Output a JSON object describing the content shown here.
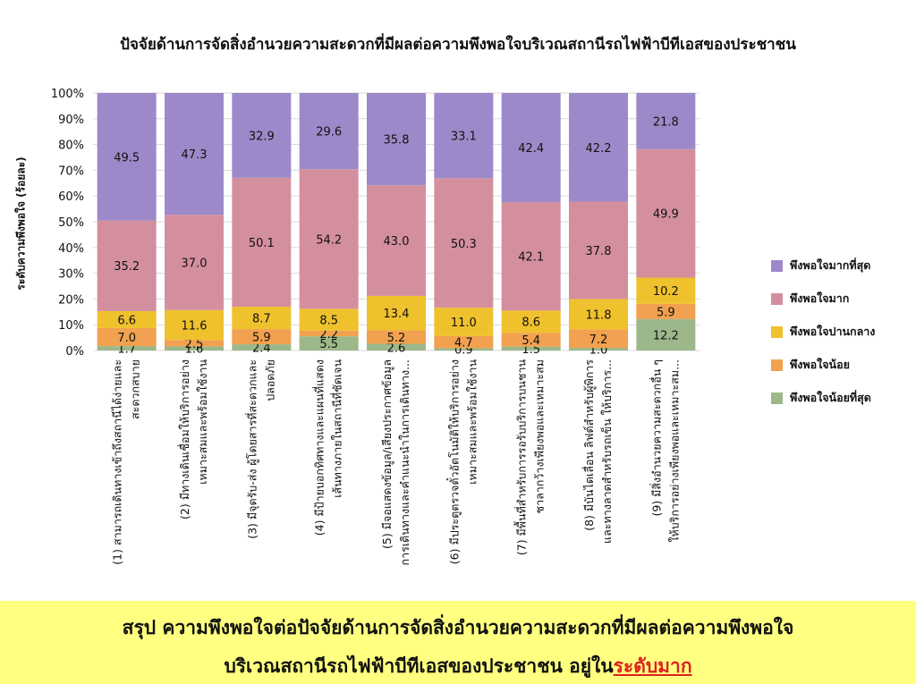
{
  "chart_data": {
    "type": "bar",
    "stacked": true,
    "title": "ปัจจัยด้านการจัดสิ่งอำนวยความสะดวกที่มีผลต่อความพึงพอใจบริเวณสถานีรถไฟฟ้าบีทีเอสของประชาชน",
    "ylabel": "ระดับความพึงพอใจ (ร้อยละ)",
    "xlabel": "",
    "ylim": [
      0,
      100
    ],
    "y_ticks": [
      "0%",
      "10%",
      "20%",
      "30%",
      "40%",
      "50%",
      "60%",
      "70%",
      "80%",
      "90%",
      "100%"
    ],
    "grid": true,
    "legend_position": "right",
    "categories": [
      [
        "(1) สามารถเดินทางเข้าถึงสถานีได้ง่ายและ",
        "สะดวกสบาย"
      ],
      [
        "(2) มีทางเดินเชื่อมให้บริการอย่าง",
        "เหมาะสมและพร้อมใช้งาน"
      ],
      [
        "(3) มีจุดรับ-ส่ง ผู้โดยสารที่สะดวกและ",
        "ปลอดภัย"
      ],
      [
        "(4) มีป้ายบอกทิศทางและแผนที่แสดง",
        "เส้นทางภายในสถานีที่ชัดเจน"
      ],
      [
        "(5) มีจอแสดงข้อมูล/เสียงประกาศข้อมูล",
        "การเดินทางและคำแนะนำในการเดินทาง..."
      ],
      [
        "(6) มีประตูตรวจตั๋วอัตโนมัติให้บริการอย่าง",
        "เหมาะสมและพร้อมใช้งาน"
      ],
      [
        "(7) มีพื้นที่สำหรับการรอรับบริการบนชาน",
        "ชาลากว้างเพียงพอและเหมาะสม"
      ],
      [
        "(8) มีบันไดเลื่อน ลิฟต์สำหรับผู้พิการ",
        "และทางลาดสำหรับรถเข็น ให้บริการ..."
      ],
      [
        "(9) มีสิ่งอำนวยความสะดวกอื่น ๆ",
        "ให้บริการอย่างเพียงพอและเหมาะสม..."
      ]
    ],
    "series": [
      {
        "name": "พึงพอใจน้อยที่สุด",
        "color": "#9cb88a",
        "values": [
          1.7,
          1.6,
          2.4,
          5.5,
          2.6,
          0.9,
          1.5,
          1.0,
          12.2
        ]
      },
      {
        "name": "พึงพอใจน้อย",
        "color": "#f1a14f",
        "values": [
          7.0,
          2.5,
          5.9,
          2.2,
          5.2,
          4.7,
          5.4,
          7.2,
          5.9
        ]
      },
      {
        "name": "พึงพอใจปานกลาง",
        "color": "#efc12d",
        "values": [
          6.6,
          11.6,
          8.7,
          8.5,
          13.4,
          11.0,
          8.6,
          11.8,
          10.2
        ]
      },
      {
        "name": "พึงพอใจมาก",
        "color": "#d48f9f",
        "values": [
          35.2,
          37.0,
          50.1,
          54.2,
          43.0,
          50.3,
          42.1,
          37.8,
          49.9
        ]
      },
      {
        "name": "พึงพอใจมากที่สุด",
        "color": "#9d89c9",
        "values": [
          49.5,
          47.3,
          32.9,
          29.6,
          35.8,
          33.1,
          42.4,
          42.2,
          21.8
        ]
      }
    ]
  },
  "summary": {
    "line1": "สรุป ความพึงพอใจต่อปัจจัยด้านการจัดสิ่งอำนวยความสะดวกที่มีผลต่อความพึงพอใจ",
    "line2_prefix": "บริเวณสถานีรถไฟฟ้าบีทีเอสของประชาชน อยู่ใน",
    "line2_highlight": "ระดับมาก"
  },
  "colors": {
    "banner_background": "#ffff80",
    "highlight_text": "#e02020"
  }
}
